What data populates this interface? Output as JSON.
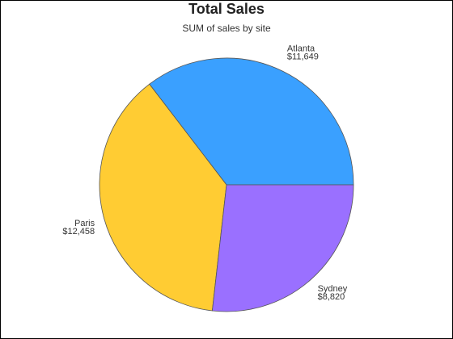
{
  "chart_data": {
    "type": "pie",
    "title": "Total Sales",
    "subtitle": "SUM of sales by site",
    "categories": [
      "Atlanta",
      "Paris",
      "Sydney"
    ],
    "values": [
      11649,
      12458,
      8820
    ],
    "value_labels": [
      "$11,649",
      "$12,458",
      "$8,820"
    ],
    "colors": [
      "#3aa0ff",
      "#ffcc33",
      "#9a70ff"
    ]
  }
}
